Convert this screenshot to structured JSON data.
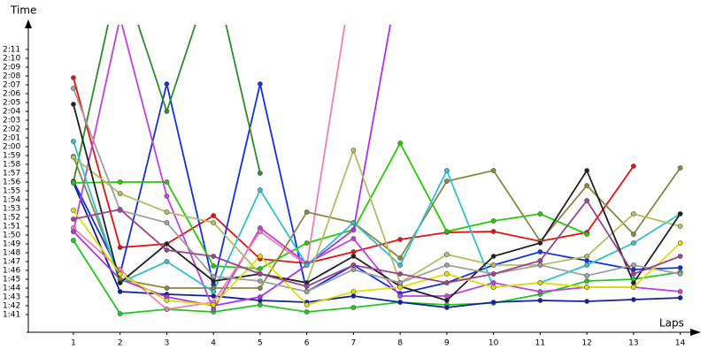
{
  "chart_data": {
    "type": "line",
    "y_label": "Time",
    "x_label": "Laps",
    "x": [
      1,
      2,
      3,
      4,
      5,
      6,
      7,
      8,
      9,
      10,
      11,
      12,
      13,
      14
    ],
    "xlim": [
      0,
      14.5
    ],
    "xticks": [
      1,
      2,
      3,
      4,
      5,
      6,
      7,
      8,
      9,
      10,
      11,
      12,
      13,
      14
    ],
    "ylim": [
      99,
      134
    ],
    "yticks": [
      {
        "value": 101,
        "label": "1:41"
      },
      {
        "value": 102,
        "label": "1:42"
      },
      {
        "value": 103,
        "label": "1:43"
      },
      {
        "value": 104,
        "label": "1:44"
      },
      {
        "value": 105,
        "label": "1:45"
      },
      {
        "value": 106,
        "label": "1:46"
      },
      {
        "value": 107,
        "label": "1:47"
      },
      {
        "value": 108,
        "label": "1:48"
      },
      {
        "value": 109,
        "label": "1:49"
      },
      {
        "value": 110,
        "label": "1:50"
      },
      {
        "value": 111,
        "label": "1:51"
      },
      {
        "value": 112,
        "label": "1:52"
      },
      {
        "value": 113,
        "label": "1:53"
      },
      {
        "value": 114,
        "label": "1:54"
      },
      {
        "value": 115,
        "label": "1:55"
      },
      {
        "value": 116,
        "label": "1:56"
      },
      {
        "value": 117,
        "label": "1:57"
      },
      {
        "value": 118,
        "label": "1:58"
      },
      {
        "value": 119,
        "label": "1:59"
      },
      {
        "value": 120,
        "label": "2:00"
      },
      {
        "value": 121,
        "label": "2:01"
      },
      {
        "value": 122,
        "label": "2:02"
      },
      {
        "value": 123,
        "label": "2:03"
      },
      {
        "value": 124,
        "label": "2:04"
      },
      {
        "value": 125,
        "label": "2:05"
      },
      {
        "value": 126,
        "label": "2:06"
      },
      {
        "value": 127,
        "label": "2:07"
      },
      {
        "value": 128,
        "label": "2:08"
      },
      {
        "value": 129,
        "label": "2:09"
      },
      {
        "value": 130,
        "label": "2:10"
      },
      {
        "value": 131,
        "label": "2:11"
      }
    ],
    "series": [
      {
        "color": "#e81010",
        "values": [
          127.8,
          108.6,
          109,
          112.2,
          107.3,
          106.8,
          108.1,
          109.5,
          110.3,
          110.4,
          109.3,
          110.3,
          117.8,
          null
        ]
      },
      {
        "color": "#20c820",
        "values": [
          109.4,
          101.1,
          101.6,
          101.3,
          102.1,
          101.3,
          101.8,
          102.4,
          102.1,
          102.3,
          103.3,
          104.8,
          105,
          105.8
        ]
      },
      {
        "color": "#1020a0",
        "values": [
          115.9,
          103.6,
          103.3,
          103.1,
          102.6,
          102.4,
          103.1,
          102.4,
          101.8,
          102.4,
          102.6,
          102.5,
          102.7,
          102.9
        ]
      },
      {
        "color": "#1030e0",
        "values": [
          116.1,
          105.6,
          127.1,
          104.4,
          127.1,
          103.6,
          106.6,
          103.4,
          104.6,
          106.6,
          108.1,
          107.1,
          106.1,
          106.3
        ]
      },
      {
        "color": "#2e8b2e",
        "values": [
          116,
          140,
          124,
          140,
          117,
          null,
          null,
          null,
          null,
          null,
          null,
          null,
          null,
          null
        ]
      },
      {
        "color": "#22cc00",
        "values": [
          115.9,
          116,
          116,
          106.5,
          106.2,
          109.1,
          110.6,
          120.4,
          110.4,
          111.6,
          112.4,
          110.1,
          null,
          null
        ]
      },
      {
        "color": "#c040e0",
        "values": [
          110.4,
          134.6,
          114.4,
          101.6,
          110.8,
          106.8,
          109.6,
          103.1,
          103.1,
          104.6,
          103.6,
          104.1,
          104.1,
          103.6
        ]
      },
      {
        "color": "#f080b0",
        "values": [
          110.8,
          106.1,
          101.6,
          102.4,
          110.4,
          106.6,
          140,
          null,
          null,
          null,
          null,
          null,
          null,
          null
        ]
      },
      {
        "color": "#b030f0",
        "values": [
          110.4,
          105,
          103,
          102,
          103,
          106.6,
          110.6,
          140,
          null,
          null,
          null,
          null,
          null,
          null
        ]
      },
      {
        "color": "#888844",
        "values": [
          118.9,
          105,
          104,
          104,
          104,
          112.6,
          111.4,
          107.4,
          116.1,
          117.3,
          109.3,
          115.6,
          110.1,
          117.6
        ]
      },
      {
        "color": "#30c0d0",
        "values": [
          120.6,
          104.6,
          107,
          103.6,
          115.1,
          106.6,
          111.4,
          106.6,
          117.3,
          104.1,
          104.6,
          106.6,
          109.1,
          112.4
        ]
      },
      {
        "color": "#b0c060",
        "values": [
          118.8,
          114.7,
          112.6,
          111.4,
          105.6,
          104.6,
          119.6,
          104.6,
          107.8,
          106.6,
          106.6,
          107.6,
          112.4,
          111
        ]
      },
      {
        "color": "#202020",
        "values": [
          124.8,
          104.6,
          109,
          104.8,
          105.6,
          104.6,
          107.6,
          104.2,
          102.6,
          107.6,
          109.1,
          117.3,
          104.6,
          112.4
        ]
      },
      {
        "color": "#a0a0a0",
        "values": [
          126.6,
          112.8,
          111.4,
          105.3,
          104.8,
          103.6,
          106.1,
          104.6,
          106.6,
          105.6,
          106.6,
          105.4,
          106.6,
          105.6
        ]
      },
      {
        "color": "#e0e000",
        "values": [
          112.8,
          105.6,
          102.6,
          102.1,
          107.6,
          102.1,
          103.6,
          104.1,
          105.6,
          104.1,
          104.6,
          104.1,
          104.1,
          109.1
        ]
      },
      {
        "color": "#a04090",
        "values": [
          111.8,
          112.9,
          108.3,
          107.6,
          105.6,
          104.2,
          106.6,
          105.6,
          104.6,
          105.6,
          107.1,
          113.9,
          105.6,
          107.6
        ]
      }
    ]
  }
}
